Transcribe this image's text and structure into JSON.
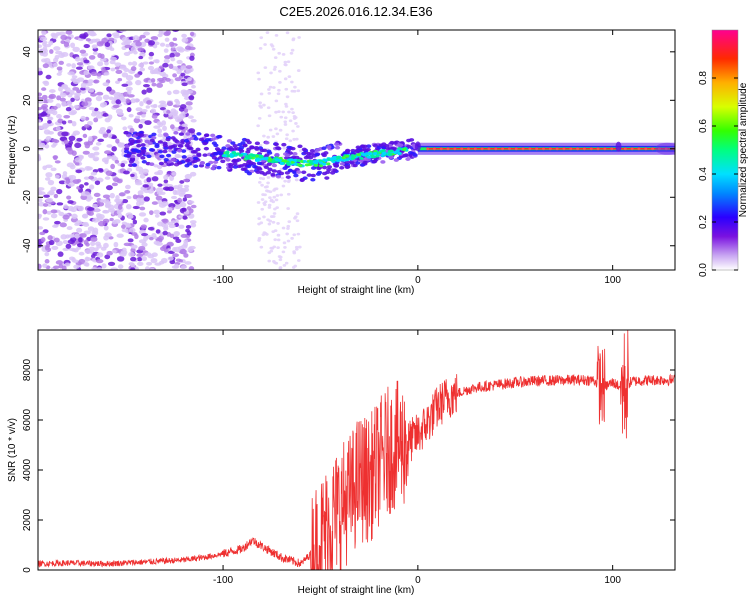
{
  "title": "C2E5.2026.016.12.34.E36",
  "chart_data": [
    {
      "type": "heatmap",
      "name": "spectrogram",
      "xlabel": "Height of straight line (km)",
      "ylabel": "Frequency (Hz)",
      "xlim": [
        -195,
        132
      ],
      "ylim": [
        -50,
        49
      ],
      "xticks": [
        -100,
        0,
        100
      ],
      "yticks": [
        -40,
        -20,
        0,
        20,
        40
      ],
      "colorbar": {
        "label": "Normalized spectral amplitude",
        "range": [
          0,
          1
        ],
        "ticks": [
          0.0,
          0.2,
          0.4,
          0.6,
          0.8
        ]
      },
      "ridge": [
        {
          "x": -120,
          "freq": 0
        },
        {
          "x": -100,
          "freq": -2
        },
        {
          "x": -80,
          "freq": -4
        },
        {
          "x": -60,
          "freq": -6
        },
        {
          "x": -50,
          "freq": -6
        },
        {
          "x": -40,
          "freq": -4
        },
        {
          "x": -30,
          "freq": -3
        },
        {
          "x": -20,
          "freq": -2
        },
        {
          "x": -10,
          "freq": -1
        },
        {
          "x": 0,
          "freq": 0
        },
        {
          "x": 10,
          "freq": 0
        },
        {
          "x": 130,
          "freq": 0
        }
      ]
    },
    {
      "type": "line",
      "name": "snr",
      "xlabel": "Height of straight line (km)",
      "ylabel": "SNR (10 * v/v)",
      "xlim": [
        -195,
        132
      ],
      "ylim": [
        0,
        9600
      ],
      "xticks": [
        -100,
        0,
        100
      ],
      "yticks": [
        0,
        2000,
        4000,
        6000,
        8000
      ],
      "series": [
        {
          "name": "SNR",
          "color": "#ee3030",
          "x": [
            -195,
            -180,
            -160,
            -140,
            -120,
            -110,
            -100,
            -90,
            -85,
            -80,
            -70,
            -60,
            -55,
            -50,
            -45,
            -40,
            -35,
            -30,
            -25,
            -20,
            -15,
            -10,
            -5,
            0,
            5,
            10,
            15,
            20,
            25,
            30,
            40,
            50,
            60,
            70,
            80,
            90,
            95,
            100,
            105,
            110,
            120,
            132
          ],
          "y": [
            250,
            280,
            250,
            320,
            400,
            500,
            650,
            850,
            1200,
            950,
            500,
            250,
            650,
            1200,
            1900,
            2500,
            2900,
            3700,
            3600,
            4300,
            4800,
            5000,
            5100,
            5400,
            5900,
            6500,
            6900,
            7050,
            7200,
            7300,
            7400,
            7500,
            7560,
            7580,
            7600,
            7600,
            7300,
            7500,
            7300,
            7550,
            7600,
            7600
          ]
        }
      ]
    }
  ]
}
